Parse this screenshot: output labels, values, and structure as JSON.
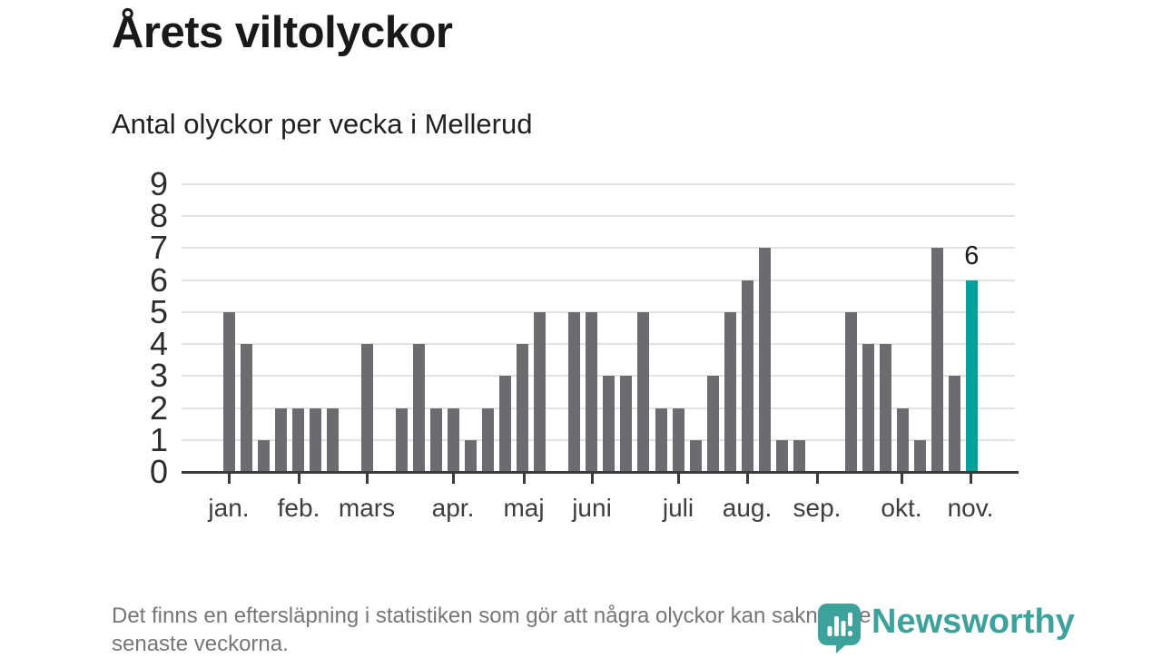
{
  "header": {
    "title": "Årets viltolyckor",
    "subtitle": "Antal olyckor per vecka i Mellerud"
  },
  "chart_data": {
    "type": "bar",
    "title": "Årets viltolyckor",
    "subtitle": "Antal olyckor per vecka i Mellerud",
    "x_unit": "vecka",
    "values": [
      5,
      4,
      1,
      2,
      2,
      2,
      2,
      0,
      4,
      0,
      2,
      4,
      2,
      2,
      1,
      2,
      3,
      4,
      5,
      0,
      5,
      5,
      3,
      3,
      5,
      2,
      2,
      1,
      3,
      5,
      6,
      7,
      1,
      1,
      0,
      0,
      5,
      4,
      4,
      2,
      1,
      7,
      3,
      6
    ],
    "ylim": [
      0,
      9
    ],
    "y_ticks": [
      0,
      1,
      2,
      3,
      4,
      5,
      6,
      7,
      8,
      9
    ],
    "grid": true,
    "legend": "none",
    "months": [
      {
        "label": "jan.",
        "px": 52
      },
      {
        "label": "feb.",
        "px": 129
      },
      {
        "label": "mars",
        "px": 204
      },
      {
        "label": "apr.",
        "px": 299
      },
      {
        "label": "maj",
        "px": 377
      },
      {
        "label": "juni",
        "px": 452
      },
      {
        "label": "juli",
        "px": 547
      },
      {
        "label": "aug.",
        "px": 623
      },
      {
        "label": "sep.",
        "px": 700
      },
      {
        "label": "okt.",
        "px": 793
      },
      {
        "label": "nov.",
        "px": 869
      }
    ],
    "bar_color": "#6b6b70",
    "highlight_index": 43,
    "highlight_color": "#00a39b",
    "gridline_color": "#e2e2e2",
    "axis_color": "#3b3b3b",
    "annotation": {
      "index": 43,
      "text": "6"
    }
  },
  "footer": {
    "lines": [
      "Det finns en eftersläpning i statistiken som gör att några olyckor kan saknas de",
      "senaste veckorna."
    ]
  },
  "branding": {
    "name": "Newsworthy",
    "logo_icon": "newsworthy-chart-bubble-icon",
    "color": "#3da19c"
  }
}
